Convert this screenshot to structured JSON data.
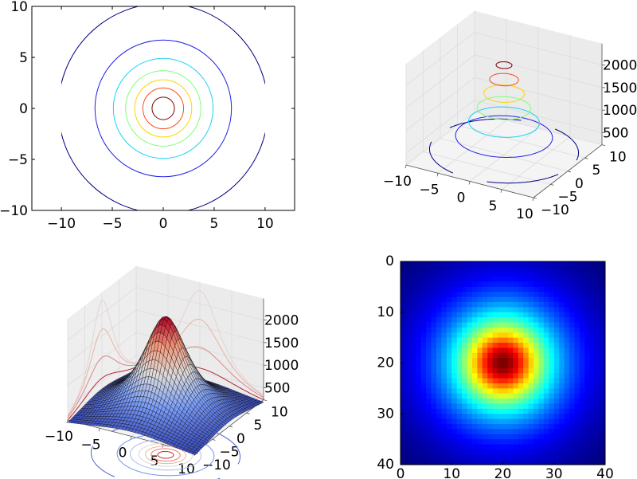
{
  "chart_data": [
    {
      "type": "contour",
      "xlim": [
        -12.9,
        12.9
      ],
      "ylim": [
        -10,
        10
      ],
      "xticks": [
        -10,
        -5,
        0,
        5,
        10
      ],
      "xticklabels": [
        "−10",
        "−5",
        "0",
        "5",
        "10"
      ],
      "yticks": [
        -10,
        -5,
        0,
        5,
        10
      ],
      "yticklabels": [
        "−10",
        "−5",
        "0",
        "5",
        "10"
      ],
      "levels": [
        320,
        640,
        960,
        1270,
        1590,
        1900,
        2220
      ],
      "radii": [
        10.3,
        6.7,
        4.9,
        3.7,
        2.8,
        2.0,
        1.1
      ],
      "colors": [
        "#00007f",
        "#2020e6",
        "#19d3f0",
        "#7dff7a",
        "#ffd400",
        "#ff4a1a",
        "#7f0000"
      ],
      "grid": false
    },
    {
      "type": "contour3d",
      "xlim": [
        -10,
        10
      ],
      "ylim": [
        -10,
        10
      ],
      "zlim": [
        235,
        2475
      ],
      "xticks": [
        -10,
        -5,
        0,
        5,
        10
      ],
      "xticklabels": [
        "−10",
        "−5",
        "0",
        "5",
        "10"
      ],
      "yticks": [
        -10,
        -5,
        0,
        5,
        10
      ],
      "yticklabels": [
        "−10",
        "−5",
        "0",
        "5",
        "10"
      ],
      "zticks": [
        500,
        1000,
        1500,
        2000
      ],
      "zticklabels": [
        "500",
        "1000",
        "1500",
        "2000"
      ],
      "levels": [
        320,
        640,
        960,
        1270,
        1590,
        1900,
        2220
      ],
      "radii": [
        10.3,
        6.7,
        4.9,
        3.7,
        2.8,
        2.0,
        1.1
      ],
      "colors": [
        "#00007f",
        "#2020e6",
        "#19d3f0",
        "#7dff7a",
        "#ffd400",
        "#ff4a1a",
        "#7f0000"
      ],
      "grid": true
    },
    {
      "type": "surface3d",
      "xlim": [
        -10,
        10
      ],
      "ylim": [
        -10,
        10
      ],
      "zlim": [
        235,
        2475
      ],
      "xticks": [
        -10,
        -5,
        0,
        5,
        10
      ],
      "xticklabels": [
        "−10",
        "−5",
        "0",
        "5",
        "10"
      ],
      "yticks": [
        -10,
        -5,
        0,
        5,
        10
      ],
      "yticklabels": [
        "−10",
        "−5",
        "0",
        "5",
        "10"
      ],
      "zticks": [
        500,
        1000,
        1500,
        2000
      ],
      "zticklabels": [
        "500",
        "1000",
        "1500",
        "2000"
      ],
      "colormap": "coolwarm",
      "z_peak": 2300,
      "z_min": 183,
      "projected_contours": [
        "x-wall",
        "y-wall",
        "floor"
      ],
      "grid": true
    },
    {
      "type": "heatmap",
      "xlim": [
        0,
        40
      ],
      "ylim": [
        40,
        0
      ],
      "xticks": [
        0,
        10,
        20,
        30,
        40
      ],
      "xticklabels": [
        "0",
        "10",
        "20",
        "30",
        "40"
      ],
      "yticks": [
        0,
        10,
        20,
        30,
        40
      ],
      "yticklabels": [
        "0",
        "10",
        "20",
        "30",
        "40"
      ],
      "colormap": "jet",
      "grid_size": [
        40,
        40
      ],
      "peak_at": [
        20,
        20
      ]
    }
  ]
}
